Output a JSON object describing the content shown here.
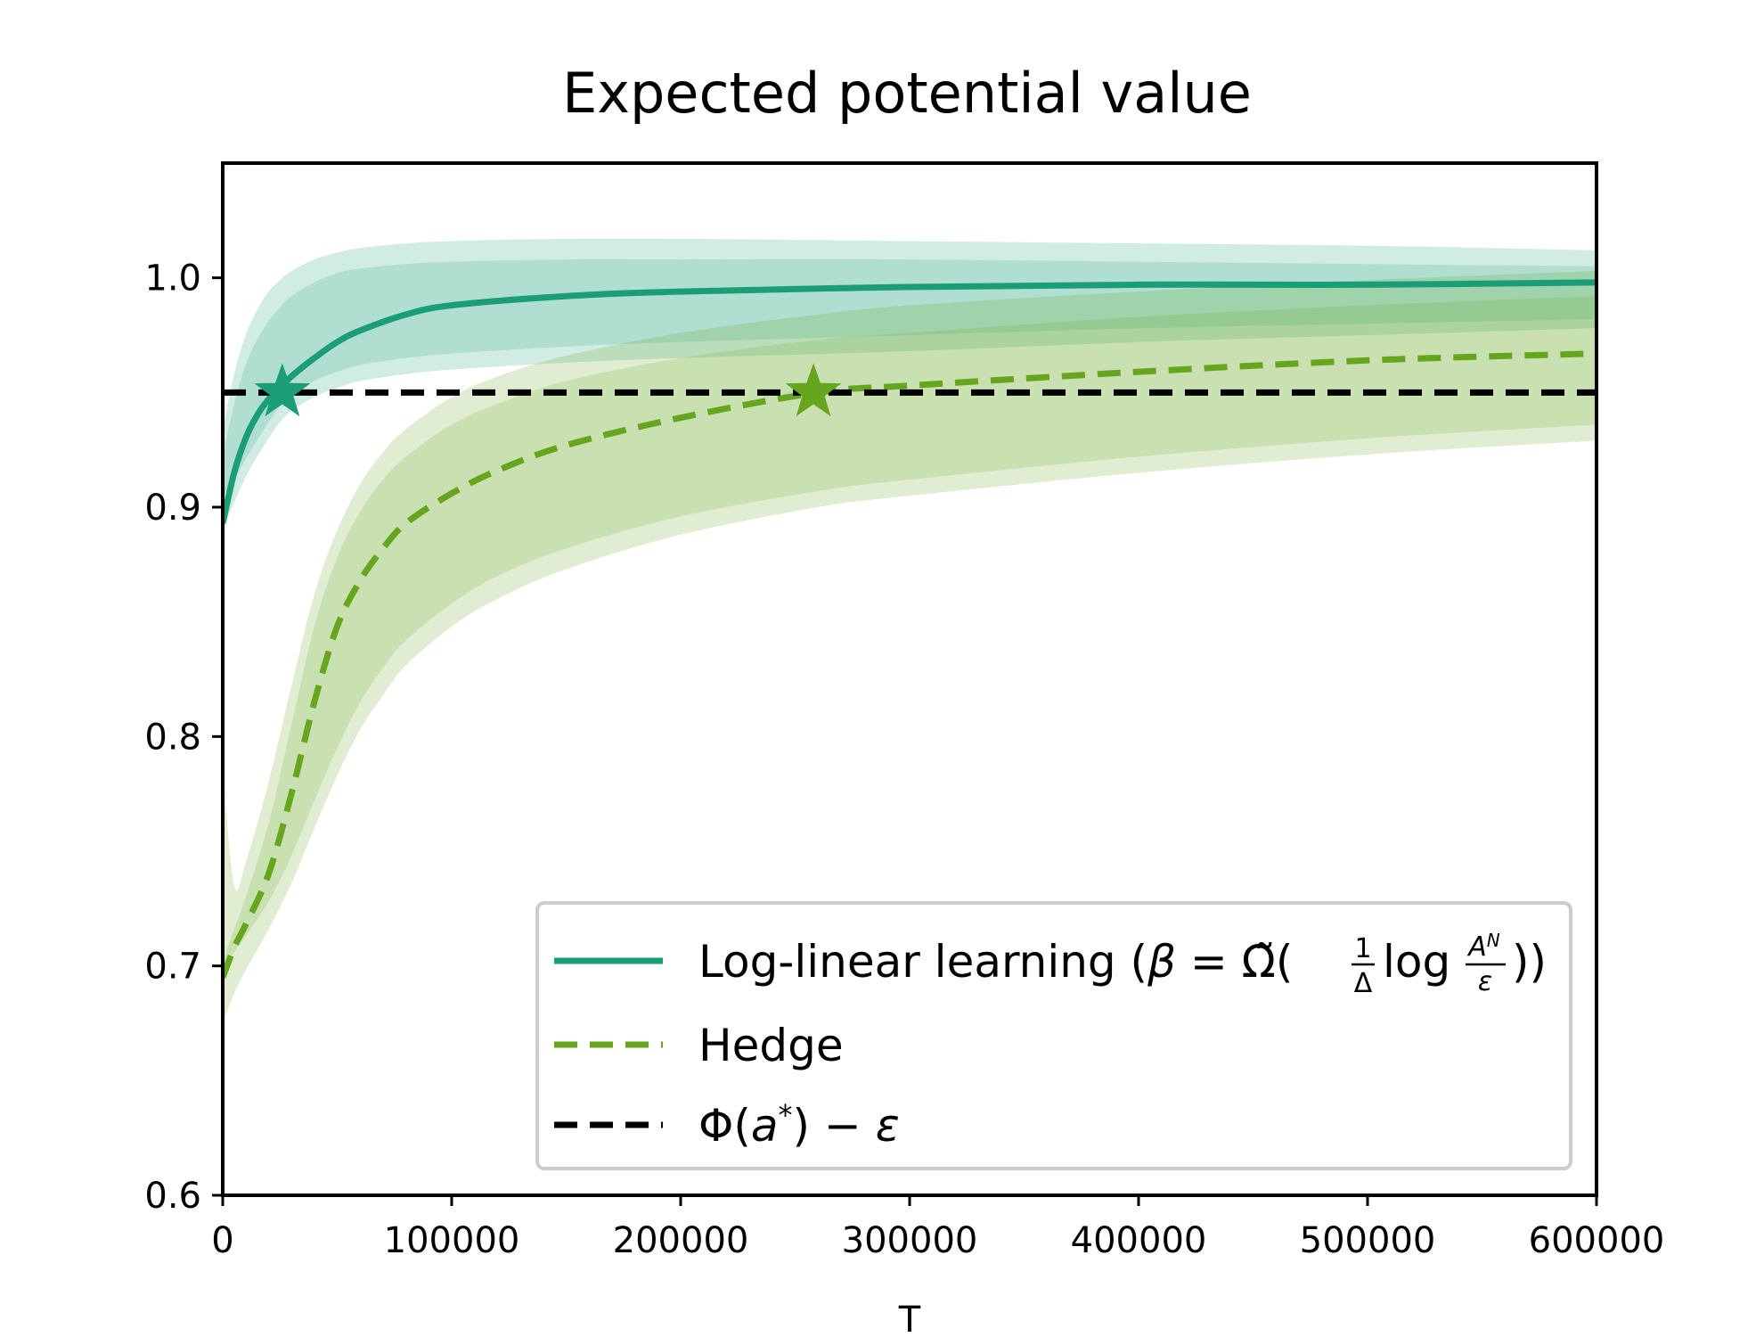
{
  "chart_data": {
    "type": "line",
    "title": "Expected potential value",
    "xlabel": "T",
    "ylabel": "",
    "xlim": [
      0,
      600000
    ],
    "ylim": [
      0.6,
      1.05
    ],
    "xticks": [
      0,
      100000,
      200000,
      300000,
      400000,
      500000,
      600000
    ],
    "xtick_labels": [
      "0",
      "100000",
      "200000",
      "300000",
      "400000",
      "500000",
      "600000"
    ],
    "yticks": [
      0.6,
      0.7,
      0.8,
      0.9,
      1.0
    ],
    "ytick_labels": [
      "0.6",
      "0.7",
      "0.8",
      "0.9",
      "1.0"
    ],
    "legend_position": "lower-right",
    "series": [
      {
        "name": "Log-linear learning",
        "legend_label": "Log-linear learning (β = Ω̃(1/Δ log A^N/ε))",
        "legend_parts": {
          "prefix": "Log-linear learning (",
          "beta": "β",
          "eq": " = ",
          "omega": "Ω̃",
          "open": "(",
          "frac1_num": "1",
          "frac1_den": "Δ",
          "log": "log",
          "frac2_num": "A",
          "frac2_sup": "N",
          "frac2_den": "ε",
          "close": "))"
        },
        "color": "#1b9e77",
        "dash": "solid",
        "x": [
          0,
          5000,
          10000,
          15000,
          20000,
          25000,
          30000,
          40000,
          50000,
          60000,
          80000,
          100000,
          150000,
          200000,
          300000,
          400000,
          500000,
          600000
        ],
        "mean": [
          0.893,
          0.915,
          0.93,
          0.94,
          0.947,
          0.952,
          0.957,
          0.965,
          0.972,
          0.977,
          0.984,
          0.988,
          0.992,
          0.994,
          0.996,
          0.997,
          0.997,
          0.998
        ],
        "inner_low": [
          0.905,
          0.912,
          0.921,
          0.929,
          0.937,
          0.944,
          0.949,
          0.955,
          0.959,
          0.962,
          0.965,
          0.967,
          0.97,
          0.972,
          0.975,
          0.978,
          0.98,
          0.982
        ],
        "inner_high": [
          0.922,
          0.945,
          0.962,
          0.973,
          0.981,
          0.987,
          0.992,
          0.998,
          1.002,
          1.004,
          1.006,
          1.007,
          1.008,
          1.008,
          1.008,
          1.007,
          1.006,
          1.005
        ],
        "outer_low": [
          0.89,
          0.902,
          0.913,
          0.922,
          0.93,
          0.937,
          0.942,
          0.948,
          0.952,
          0.955,
          0.958,
          0.96,
          0.963,
          0.965,
          0.968,
          0.972,
          0.975,
          0.978
        ],
        "outer_high": [
          0.934,
          0.958,
          0.975,
          0.986,
          0.994,
          0.999,
          1.003,
          1.008,
          1.011,
          1.013,
          1.015,
          1.016,
          1.017,
          1.017,
          1.016,
          1.015,
          1.014,
          1.012
        ],
        "marker": {
          "shape": "star",
          "x": 26000,
          "y": 0.95
        }
      },
      {
        "name": "Hedge",
        "legend_label": "Hedge",
        "color": "#66a61e",
        "dash": "dashed",
        "x": [
          0,
          5000,
          10000,
          20000,
          30000,
          40000,
          50000,
          60000,
          70000,
          80000,
          100000,
          120000,
          150000,
          200000,
          260000,
          300000,
          400000,
          500000,
          600000
        ],
        "mean": [
          0.695,
          0.708,
          0.718,
          0.74,
          0.775,
          0.815,
          0.848,
          0.868,
          0.882,
          0.893,
          0.906,
          0.916,
          0.927,
          0.939,
          0.95,
          0.953,
          0.959,
          0.964,
          0.967
        ],
        "inner_low": [
          0.7,
          0.706,
          0.713,
          0.728,
          0.748,
          0.772,
          0.795,
          0.815,
          0.83,
          0.842,
          0.858,
          0.87,
          0.882,
          0.896,
          0.907,
          0.912,
          0.922,
          0.93,
          0.936
        ],
        "inner_high": [
          0.702,
          0.716,
          0.73,
          0.762,
          0.805,
          0.848,
          0.878,
          0.898,
          0.912,
          0.922,
          0.936,
          0.945,
          0.955,
          0.965,
          0.973,
          0.976,
          0.983,
          0.988,
          0.992
        ],
        "outer_low": [
          0.675,
          0.688,
          0.698,
          0.716,
          0.736,
          0.76,
          0.783,
          0.803,
          0.818,
          0.831,
          0.848,
          0.86,
          0.873,
          0.888,
          0.9,
          0.905,
          0.915,
          0.923,
          0.929
        ],
        "outer_high": [
          0.785,
          0.735,
          0.745,
          0.78,
          0.822,
          0.862,
          0.89,
          0.91,
          0.924,
          0.934,
          0.948,
          0.957,
          0.966,
          0.976,
          0.984,
          0.988,
          0.994,
          0.999,
          1.003
        ],
        "marker": {
          "shape": "star",
          "x": 258000,
          "y": 0.95
        }
      },
      {
        "name": "Phi(a*) - epsilon",
        "legend_label": "Φ(a*) − ε",
        "legend_parts": {
          "phi": "Φ(",
          "a": "a",
          "star": "*",
          "rest": ") − ",
          "eps": "ε"
        },
        "color": "#000000",
        "dash": "dashed",
        "x": [
          0,
          600000
        ],
        "mean": [
          0.95,
          0.95
        ]
      }
    ]
  }
}
